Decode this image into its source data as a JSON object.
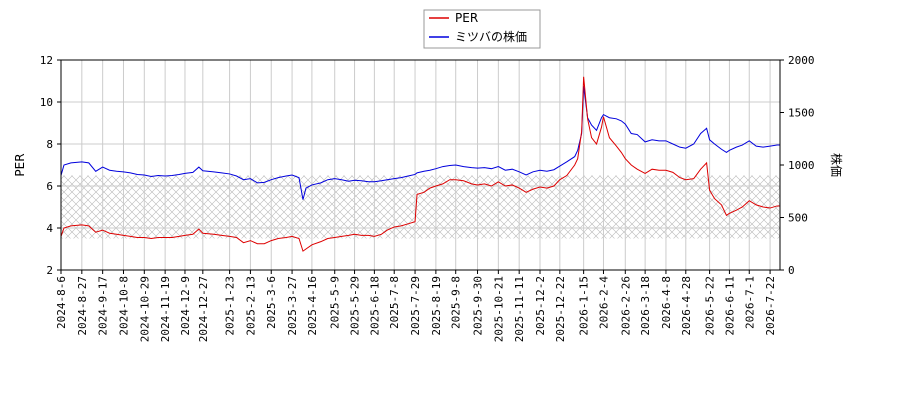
{
  "chart_data": {
    "type": "line",
    "title": "",
    "xlabel": "",
    "ylabel_left": "PER",
    "ylabel_right": "株価",
    "ylim_left": [
      2,
      12
    ],
    "ylim_right": [
      0,
      2000
    ],
    "yticks_left": [
      "2",
      "4",
      "6",
      "8",
      "10",
      "12"
    ],
    "yticks_right": [
      "0",
      "500",
      "1000",
      "1500",
      "2000"
    ],
    "x_tick_labels": [
      "2024-8-6",
      "2024-8-27",
      "2024-9-17",
      "2024-10-8",
      "2024-10-29",
      "2024-11-19",
      "2024-12-9",
      "2024-12-27",
      "2025-1-23",
      "2025-2-13",
      "2025-3-6",
      "2025-3-27",
      "2025-4-16",
      "2025-5-9",
      "2025-5-29",
      "2025-6-18",
      "2025-7-8",
      "2025-7-29",
      "2025-8-19",
      "2025-9-8",
      "2025-9-30",
      "2025-10-21",
      "2025-11-11",
      "2025-12-2",
      "2025-12-22",
      "2026-1-15",
      "2026-2-4",
      "2026-2-26",
      "2026-3-18",
      "2026-4-8",
      "2026-4-28",
      "2026-5-22",
      "2026-6-11",
      "2026-7-1",
      "2026-7-22"
    ],
    "grid": true,
    "legend_position": "top-center",
    "shaded_band": {
      "axis": "right",
      "range": [
        300,
        900
      ],
      "pattern": "crosshatch"
    },
    "series": [
      {
        "name": "PER",
        "color": "#dd0000",
        "axis": "left",
        "points": [
          [
            "2024-8-6",
            3.6
          ],
          [
            "2024-8-9",
            4.0
          ],
          [
            "2024-8-16",
            4.1
          ],
          [
            "2024-8-27",
            4.15
          ],
          [
            "2024-9-3",
            4.1
          ],
          [
            "2024-9-10",
            3.8
          ],
          [
            "2024-9-17",
            3.9
          ],
          [
            "2024-9-24",
            3.75
          ],
          [
            "2024-10-1",
            3.7
          ],
          [
            "2024-10-8",
            3.65
          ],
          [
            "2024-10-15",
            3.6
          ],
          [
            "2024-10-22",
            3.55
          ],
          [
            "2024-10-29",
            3.55
          ],
          [
            "2024-11-5",
            3.5
          ],
          [
            "2024-11-12",
            3.55
          ],
          [
            "2024-11-19",
            3.55
          ],
          [
            "2024-11-26",
            3.55
          ],
          [
            "2024-12-3",
            3.6
          ],
          [
            "2024-12-9",
            3.65
          ],
          [
            "2024-12-17",
            3.7
          ],
          [
            "2024-12-23",
            3.95
          ],
          [
            "2024-12-27",
            3.75
          ],
          [
            "2025-1-7",
            3.7
          ],
          [
            "2025-1-15",
            3.65
          ],
          [
            "2025-1-23",
            3.6
          ],
          [
            "2025-1-30",
            3.55
          ],
          [
            "2025-2-6",
            3.3
          ],
          [
            "2025-2-13",
            3.4
          ],
          [
            "2025-2-20",
            3.25
          ],
          [
            "2025-2-27",
            3.25
          ],
          [
            "2025-3-6",
            3.4
          ],
          [
            "2025-3-13",
            3.5
          ],
          [
            "2025-3-21",
            3.55
          ],
          [
            "2025-3-27",
            3.6
          ],
          [
            "2025-4-3",
            3.5
          ],
          [
            "2025-4-7",
            2.9
          ],
          [
            "2025-4-10",
            3.0
          ],
          [
            "2025-4-16",
            3.2
          ],
          [
            "2025-4-25",
            3.35
          ],
          [
            "2025-5-2",
            3.5
          ],
          [
            "2025-5-9",
            3.55
          ],
          [
            "2025-5-16",
            3.6
          ],
          [
            "2025-5-23",
            3.65
          ],
          [
            "2025-5-29",
            3.7
          ],
          [
            "2025-6-5",
            3.65
          ],
          [
            "2025-6-12",
            3.65
          ],
          [
            "2025-6-18",
            3.6
          ],
          [
            "2025-6-25",
            3.7
          ],
          [
            "2025-7-1",
            3.9
          ],
          [
            "2025-7-8",
            4.05
          ],
          [
            "2025-7-15",
            4.1
          ],
          [
            "2025-7-22",
            4.2
          ],
          [
            "2025-7-29",
            4.3
          ],
          [
            "2025-7-31",
            5.6
          ],
          [
            "2025-8-7",
            5.7
          ],
          [
            "2025-8-13",
            5.9
          ],
          [
            "2025-8-19",
            6.0
          ],
          [
            "2025-8-26",
            6.1
          ],
          [
            "2025-9-2",
            6.3
          ],
          [
            "2025-9-8",
            6.3
          ],
          [
            "2025-9-16",
            6.25
          ],
          [
            "2025-9-24",
            6.1
          ],
          [
            "2025-9-30",
            6.05
          ],
          [
            "2025-10-7",
            6.1
          ],
          [
            "2025-10-14",
            6.0
          ],
          [
            "2025-10-21",
            6.2
          ],
          [
            "2025-10-28",
            6.0
          ],
          [
            "2025-11-4",
            6.05
          ],
          [
            "2025-11-11",
            5.9
          ],
          [
            "2025-11-18",
            5.7
          ],
          [
            "2025-11-25",
            5.85
          ],
          [
            "2025-12-2",
            5.95
          ],
          [
            "2025-12-9",
            5.9
          ],
          [
            "2025-12-16",
            6.0
          ],
          [
            "2025-12-22",
            6.3
          ],
          [
            "2025-12-29",
            6.5
          ],
          [
            "2026-1-6",
            7.0
          ],
          [
            "2026-1-9",
            7.3
          ],
          [
            "2026-1-13",
            8.6
          ],
          [
            "2026-1-15",
            11.2
          ],
          [
            "2026-1-19",
            9.2
          ],
          [
            "2026-1-23",
            8.3
          ],
          [
            "2026-1-28",
            8.0
          ],
          [
            "2026-2-2",
            8.8
          ],
          [
            "2026-2-4",
            9.3
          ],
          [
            "2026-2-10",
            8.3
          ],
          [
            "2026-2-17",
            7.9
          ],
          [
            "2026-2-22",
            7.6
          ],
          [
            "2026-2-26",
            7.3
          ],
          [
            "2026-3-4",
            7.0
          ],
          [
            "2026-3-10",
            6.8
          ],
          [
            "2026-3-18",
            6.6
          ],
          [
            "2026-3-25",
            6.8
          ],
          [
            "2026-4-1",
            6.75
          ],
          [
            "2026-4-8",
            6.75
          ],
          [
            "2026-4-15",
            6.65
          ],
          [
            "2026-4-22",
            6.4
          ],
          [
            "2026-4-28",
            6.3
          ],
          [
            "2026-5-6",
            6.35
          ],
          [
            "2026-5-13",
            6.8
          ],
          [
            "2026-5-19",
            7.1
          ],
          [
            "2026-5-22",
            5.8
          ],
          [
            "2026-5-27",
            5.4
          ],
          [
            "2026-6-3",
            5.1
          ],
          [
            "2026-6-8",
            4.6
          ],
          [
            "2026-6-11",
            4.7
          ],
          [
            "2026-6-18",
            4.85
          ],
          [
            "2026-6-24",
            5.0
          ],
          [
            "2026-7-1",
            5.3
          ],
          [
            "2026-7-8",
            5.1
          ],
          [
            "2026-7-15",
            5.0
          ],
          [
            "2026-7-22",
            4.95
          ],
          [
            "2026-7-29",
            5.05
          ],
          [
            "2026-8-1",
            5.05
          ]
        ]
      },
      {
        "name": "ミツバの株価",
        "color": "#0000dd",
        "axis": "right",
        "points": [
          [
            "2024-8-6",
            900
          ],
          [
            "2024-8-9",
            1000
          ],
          [
            "2024-8-16",
            1020
          ],
          [
            "2024-8-27",
            1030
          ],
          [
            "2024-9-3",
            1020
          ],
          [
            "2024-9-10",
            940
          ],
          [
            "2024-9-17",
            980
          ],
          [
            "2024-9-24",
            950
          ],
          [
            "2024-10-1",
            940
          ],
          [
            "2024-10-8",
            935
          ],
          [
            "2024-10-15",
            925
          ],
          [
            "2024-10-22",
            910
          ],
          [
            "2024-10-29",
            905
          ],
          [
            "2024-11-5",
            890
          ],
          [
            "2024-11-12",
            900
          ],
          [
            "2024-11-19",
            895
          ],
          [
            "2024-11-26",
            900
          ],
          [
            "2024-12-3",
            910
          ],
          [
            "2024-12-9",
            920
          ],
          [
            "2024-12-17",
            930
          ],
          [
            "2024-12-23",
            980
          ],
          [
            "2024-12-27",
            945
          ],
          [
            "2025-1-7",
            935
          ],
          [
            "2025-1-15",
            925
          ],
          [
            "2025-1-23",
            915
          ],
          [
            "2025-1-30",
            895
          ],
          [
            "2025-2-6",
            860
          ],
          [
            "2025-2-13",
            870
          ],
          [
            "2025-2-20",
            830
          ],
          [
            "2025-2-27",
            835
          ],
          [
            "2025-3-6",
            860
          ],
          [
            "2025-3-13",
            880
          ],
          [
            "2025-3-21",
            895
          ],
          [
            "2025-3-27",
            905
          ],
          [
            "2025-4-3",
            880
          ],
          [
            "2025-4-7",
            670
          ],
          [
            "2025-4-10",
            780
          ],
          [
            "2025-4-16",
            810
          ],
          [
            "2025-4-25",
            830
          ],
          [
            "2025-5-2",
            860
          ],
          [
            "2025-5-9",
            870
          ],
          [
            "2025-5-16",
            860
          ],
          [
            "2025-5-23",
            845
          ],
          [
            "2025-5-29",
            855
          ],
          [
            "2025-6-5",
            850
          ],
          [
            "2025-6-12",
            840
          ],
          [
            "2025-6-18",
            840
          ],
          [
            "2025-6-25",
            850
          ],
          [
            "2025-7-1",
            860
          ],
          [
            "2025-7-8",
            870
          ],
          [
            "2025-7-15",
            880
          ],
          [
            "2025-7-22",
            895
          ],
          [
            "2025-7-29",
            910
          ],
          [
            "2025-7-31",
            925
          ],
          [
            "2025-8-7",
            940
          ],
          [
            "2025-8-13",
            950
          ],
          [
            "2025-8-19",
            965
          ],
          [
            "2025-8-26",
            985
          ],
          [
            "2025-9-2",
            995
          ],
          [
            "2025-9-8",
            1000
          ],
          [
            "2025-9-16",
            985
          ],
          [
            "2025-9-24",
            975
          ],
          [
            "2025-9-30",
            970
          ],
          [
            "2025-10-7",
            975
          ],
          [
            "2025-10-14",
            965
          ],
          [
            "2025-10-21",
            985
          ],
          [
            "2025-10-28",
            950
          ],
          [
            "2025-11-4",
            960
          ],
          [
            "2025-11-11",
            935
          ],
          [
            "2025-11-18",
            905
          ],
          [
            "2025-11-25",
            935
          ],
          [
            "2025-12-2",
            950
          ],
          [
            "2025-12-9",
            940
          ],
          [
            "2025-12-16",
            955
          ],
          [
            "2025-12-22",
            990
          ],
          [
            "2025-12-29",
            1030
          ],
          [
            "2026-1-6",
            1080
          ],
          [
            "2026-1-9",
            1140
          ],
          [
            "2026-1-13",
            1300
          ],
          [
            "2026-1-15",
            1750
          ],
          [
            "2026-1-19",
            1450
          ],
          [
            "2026-1-23",
            1380
          ],
          [
            "2026-1-28",
            1330
          ],
          [
            "2026-2-2",
            1450
          ],
          [
            "2026-2-4",
            1480
          ],
          [
            "2026-2-10",
            1450
          ],
          [
            "2026-2-17",
            1440
          ],
          [
            "2026-2-22",
            1420
          ],
          [
            "2026-2-26",
            1390
          ],
          [
            "2026-3-4",
            1300
          ],
          [
            "2026-3-10",
            1290
          ],
          [
            "2026-3-18",
            1220
          ],
          [
            "2026-3-25",
            1240
          ],
          [
            "2026-4-1",
            1230
          ],
          [
            "2026-4-8",
            1230
          ],
          [
            "2026-4-15",
            1200
          ],
          [
            "2026-4-22",
            1170
          ],
          [
            "2026-4-28",
            1160
          ],
          [
            "2026-5-6",
            1200
          ],
          [
            "2026-5-13",
            1300
          ],
          [
            "2026-5-19",
            1350
          ],
          [
            "2026-5-22",
            1240
          ],
          [
            "2026-5-27",
            1200
          ],
          [
            "2026-6-3",
            1150
          ],
          [
            "2026-6-8",
            1120
          ],
          [
            "2026-6-11",
            1140
          ],
          [
            "2026-6-18",
            1170
          ],
          [
            "2026-6-24",
            1190
          ],
          [
            "2026-7-1",
            1230
          ],
          [
            "2026-7-8",
            1180
          ],
          [
            "2026-7-15",
            1170
          ],
          [
            "2026-7-22",
            1180
          ],
          [
            "2026-7-29",
            1190
          ],
          [
            "2026-8-1",
            1190
          ]
        ]
      }
    ]
  }
}
